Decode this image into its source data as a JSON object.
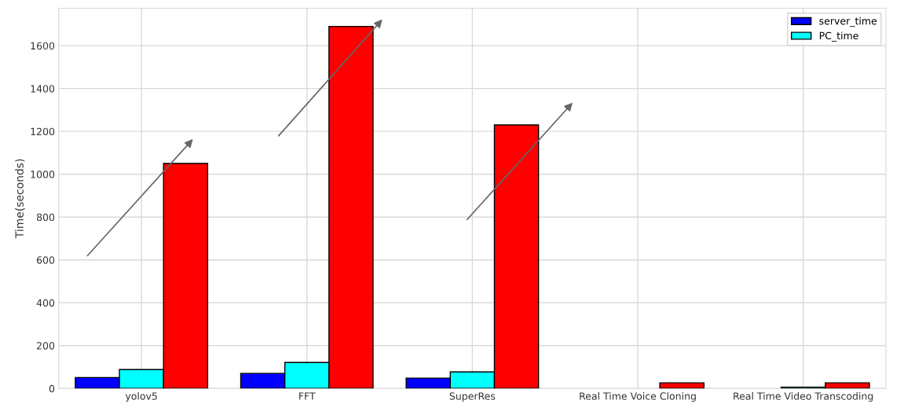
{
  "chart_data": {
    "type": "bar",
    "ylabel": "Time(seconds)",
    "categories": [
      "yolov5",
      "FFT",
      "SuperRes",
      "Real Time Voice Cloning",
      "Real Time Video Transcoding"
    ],
    "series": [
      {
        "name": "server_time",
        "color": "#0000ff",
        "values": [
          51,
          70,
          48,
          null,
          null
        ]
      },
      {
        "name": "PC_time",
        "color": "#00ffff",
        "values": [
          88,
          121,
          77,
          null,
          6
        ]
      },
      {
        "color": "#ff0000",
        "values": [
          1050,
          1690,
          1230,
          26,
          26
        ]
      }
    ],
    "ylim": [
      0,
      1775
    ],
    "yticks": [
      0,
      200,
      400,
      600,
      800,
      1000,
      1200,
      1400,
      1600
    ],
    "grid": true,
    "legend": "top right"
  }
}
